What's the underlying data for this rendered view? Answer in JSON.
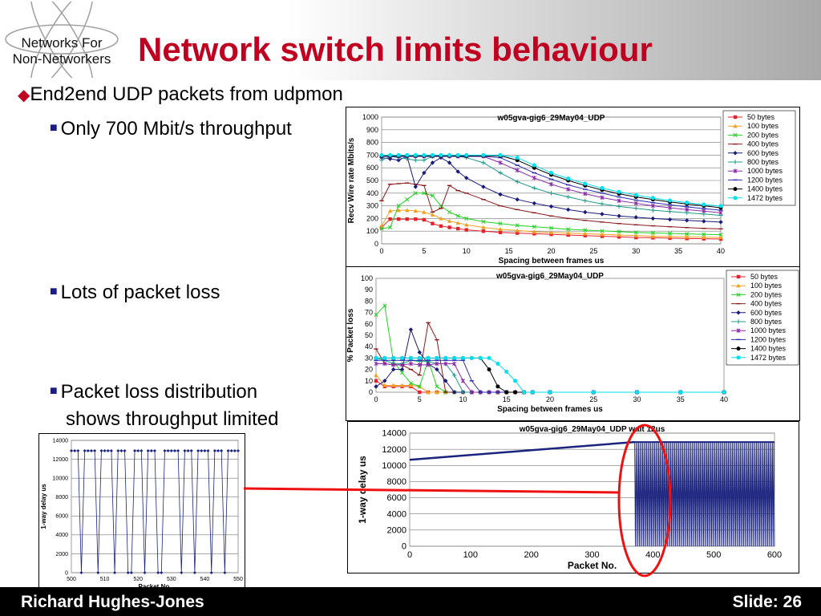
{
  "slide": {
    "logo_lines": [
      "Networks For",
      "Non-Networkers"
    ],
    "title": "Network switch limits behaviour",
    "bullet1": "End2end UDP packets from udpmon",
    "sub1": "Only 700 Mbit/s throughput",
    "sub2": "Lots of packet loss",
    "sub3_line1": "Packet loss distribution",
    "sub3_line2": "shows throughput limited",
    "footer_author": "Richard Hughes-Jones",
    "footer_slide": "Slide: 26"
  },
  "colors": {
    "title": "#c00020",
    "highlight": "#ee1111",
    "bullet_sub": "#1b1b8a"
  },
  "chart_data": [
    {
      "type": "line",
      "title": "w05gva-gig6_29May04_UDP",
      "xlabel": "Spacing between frames us",
      "ylabel": "Recv Wire rate Mbits/s",
      "xlim": [
        0,
        40
      ],
      "ylim": [
        0,
        1000
      ],
      "xticks": [
        0,
        5,
        10,
        15,
        20,
        25,
        30,
        35,
        40
      ],
      "yticks": [
        0,
        100,
        200,
        300,
        400,
        500,
        600,
        700,
        800,
        900,
        1000
      ],
      "grid": true,
      "legend": "right",
      "x": [
        0,
        1,
        2,
        3,
        4,
        5,
        6,
        7,
        8,
        9,
        10,
        12,
        14,
        16,
        18,
        20,
        22,
        24,
        26,
        28,
        30,
        32,
        34,
        36,
        38,
        40
      ],
      "series": [
        {
          "name": "50 bytes",
          "color": "#e8202a",
          "values": [
            130,
            195,
            195,
            195,
            195,
            190,
            160,
            140,
            130,
            120,
            110,
            100,
            90,
            85,
            80,
            75,
            70,
            65,
            60,
            55,
            50,
            48,
            45,
            42,
            40,
            38
          ]
        },
        {
          "name": "100 bytes",
          "color": "#f0a020",
          "values": [
            140,
            260,
            265,
            265,
            260,
            250,
            230,
            200,
            180,
            165,
            150,
            130,
            115,
            105,
            95,
            90,
            85,
            80,
            75,
            70,
            65,
            60,
            58,
            55,
            52,
            50
          ]
        },
        {
          "name": "200 bytes",
          "color": "#20d020",
          "values": [
            120,
            130,
            300,
            350,
            400,
            400,
            380,
            300,
            250,
            220,
            200,
            175,
            160,
            145,
            135,
            125,
            115,
            108,
            102,
            96,
            90,
            86,
            82,
            78,
            75,
            72
          ]
        },
        {
          "name": "400 bytes",
          "color": "#8b1a1a",
          "values": [
            340,
            470,
            475,
            480,
            470,
            460,
            250,
            280,
            460,
            420,
            400,
            350,
            300,
            270,
            245,
            220,
            200,
            185,
            172,
            160,
            150,
            142,
            135,
            128,
            122,
            118
          ]
        },
        {
          "name": "600 bytes",
          "color": "#1a1a7a",
          "values": [
            680,
            670,
            660,
            690,
            450,
            560,
            640,
            680,
            640,
            570,
            520,
            450,
            390,
            350,
            320,
            295,
            270,
            250,
            235,
            220,
            210,
            200,
            192,
            185,
            178,
            172
          ]
        },
        {
          "name": "800 bytes",
          "color": "#1e9a8a",
          "values": [
            660,
            690,
            680,
            670,
            660,
            660,
            690,
            690,
            690,
            690,
            680,
            640,
            560,
            490,
            440,
            400,
            370,
            340,
            315,
            295,
            280,
            265,
            255,
            245,
            235,
            225
          ]
        },
        {
          "name": "1000 bytes",
          "color": "#8a2aa8",
          "values": [
            690,
            690,
            690,
            690,
            690,
            690,
            690,
            690,
            690,
            690,
            690,
            690,
            640,
            580,
            520,
            470,
            430,
            395,
            365,
            340,
            320,
            300,
            285,
            270,
            258,
            245
          ]
        },
        {
          "name": "1200 bytes",
          "color": "#2a2ab0",
          "values": [
            690,
            690,
            690,
            690,
            690,
            690,
            690,
            690,
            690,
            690,
            690,
            690,
            680,
            620,
            560,
            510,
            465,
            430,
            400,
            370,
            345,
            325,
            308,
            292,
            278,
            265
          ]
        },
        {
          "name": "1400 bytes",
          "color": "#000000",
          "values": [
            695,
            695,
            695,
            695,
            695,
            695,
            695,
            695,
            695,
            695,
            695,
            695,
            695,
            660,
            600,
            545,
            500,
            460,
            425,
            395,
            370,
            350,
            330,
            315,
            300,
            285
          ]
        },
        {
          "name": "1472 bytes",
          "color": "#00e0f0",
          "values": [
            700,
            700,
            700,
            700,
            700,
            700,
            700,
            700,
            700,
            700,
            700,
            700,
            700,
            680,
            620,
            560,
            515,
            475,
            440,
            410,
            385,
            362,
            342,
            325,
            310,
            298
          ]
        }
      ]
    },
    {
      "type": "line",
      "title": "w05gva-gig6_29May04_UDP",
      "xlabel": "Spacing between frames us",
      "ylabel": "% Packet loss",
      "xlim": [
        0,
        40
      ],
      "ylim": [
        0,
        100
      ],
      "xticks": [
        0,
        5,
        10,
        15,
        20,
        25,
        30,
        35,
        40
      ],
      "yticks": [
        0,
        10,
        20,
        30,
        40,
        50,
        60,
        70,
        80,
        90,
        100
      ],
      "grid": false,
      "legend": "right",
      "x": [
        0,
        1,
        2,
        3,
        4,
        5,
        6,
        7,
        8,
        9,
        10,
        11,
        12,
        13,
        14,
        15,
        16,
        17,
        18,
        20,
        25,
        30,
        35,
        40
      ],
      "series": [
        {
          "name": "50 bytes",
          "color": "#e8202a",
          "values": [
            10,
            5,
            5,
            5,
            5,
            0,
            0,
            0,
            0,
            0,
            0,
            0,
            0,
            0,
            0,
            0,
            0,
            0,
            0,
            0,
            0,
            0,
            0,
            0
          ]
        },
        {
          "name": "100 bytes",
          "color": "#f0a020",
          "values": [
            15,
            6,
            6,
            6,
            6,
            5,
            0,
            0,
            0,
            0,
            0,
            0,
            0,
            0,
            0,
            0,
            0,
            0,
            0,
            0,
            0,
            0,
            0,
            0
          ]
        },
        {
          "name": "200 bytes",
          "color": "#20d020",
          "values": [
            68,
            76,
            27,
            17,
            8,
            5,
            28,
            5,
            0,
            0,
            0,
            0,
            0,
            0,
            0,
            0,
            0,
            0,
            0,
            0,
            0,
            0,
            0,
            0
          ]
        },
        {
          "name": "400 bytes",
          "color": "#8b1a1a",
          "values": [
            38,
            25,
            24,
            24,
            20,
            15,
            61,
            46,
            0,
            0,
            0,
            0,
            0,
            0,
            0,
            0,
            0,
            0,
            0,
            0,
            0,
            0,
            0,
            0
          ]
        },
        {
          "name": "600 bytes",
          "color": "#1a1a7a",
          "values": [
            5,
            10,
            20,
            20,
            55,
            35,
            25,
            20,
            10,
            0,
            0,
            0,
            0,
            0,
            0,
            0,
            0,
            0,
            0,
            0,
            0,
            0,
            0,
            0
          ]
        },
        {
          "name": "800 bytes",
          "color": "#1e9a8a",
          "values": [
            30,
            28,
            25,
            25,
            28,
            27,
            27,
            25,
            25,
            15,
            0,
            0,
            0,
            0,
            0,
            0,
            0,
            0,
            0,
            0,
            0,
            0,
            0,
            0
          ]
        },
        {
          "name": "1000 bytes",
          "color": "#8a2aa8",
          "values": [
            25,
            25,
            24,
            24,
            25,
            24,
            24,
            25,
            25,
            25,
            10,
            0,
            0,
            0,
            0,
            0,
            0,
            0,
            0,
            0,
            0,
            0,
            0,
            0
          ]
        },
        {
          "name": "1200 bytes",
          "color": "#2a2ab0",
          "values": [
            28,
            28,
            28,
            28,
            28,
            28,
            28,
            28,
            28,
            28,
            28,
            10,
            0,
            0,
            0,
            0,
            0,
            0,
            0,
            0,
            0,
            0,
            0,
            0
          ]
        },
        {
          "name": "1400 bytes",
          "color": "#000000",
          "values": [
            30,
            30,
            30,
            30,
            30,
            30,
            30,
            30,
            30,
            30,
            30,
            30,
            30,
            20,
            5,
            0,
            0,
            0,
            0,
            0,
            0,
            0,
            0,
            0
          ]
        },
        {
          "name": "1472 bytes",
          "color": "#00e0f0",
          "values": [
            30,
            30,
            30,
            30,
            30,
            30,
            30,
            30,
            30,
            30,
            30,
            30,
            30,
            30,
            25,
            18,
            10,
            0,
            0,
            0,
            0,
            0,
            0,
            0
          ]
        }
      ]
    },
    {
      "type": "line",
      "title": "w05gva-gig6_29May04_UDP wait 12us",
      "xlabel": "Packet No.",
      "ylabel": "1-way delay us",
      "xlim": [
        0,
        600
      ],
      "ylim": [
        0,
        14000
      ],
      "xticks": [
        0,
        100,
        200,
        300,
        400,
        500,
        600
      ],
      "yticks": [
        0,
        2000,
        4000,
        6000,
        8000,
        10000,
        12000,
        14000
      ],
      "grid": true,
      "ramp": [
        [
          0,
          10700
        ],
        [
          370,
          12900
        ]
      ],
      "oscillation": {
        "x_start": 370,
        "x_end": 600,
        "high": 12900,
        "low": 0
      }
    },
    {
      "type": "line",
      "title": "",
      "xlabel": "Packet No.",
      "ylabel": "1-way delay us",
      "xlim": [
        500,
        550
      ],
      "ylim": [
        0,
        14000
      ],
      "xticks": [
        500,
        510,
        520,
        530,
        540,
        550
      ],
      "yticks": [
        0,
        2000,
        4000,
        6000,
        8000,
        10000,
        12000,
        14000
      ],
      "grid": true,
      "x": [
        500,
        501,
        502,
        503,
        504,
        505,
        506,
        507,
        508,
        509,
        510,
        511,
        512,
        513,
        514,
        515,
        516,
        517,
        518,
        519,
        520,
        521,
        522,
        523,
        524,
        525,
        526,
        527,
        528,
        529,
        530,
        531,
        532,
        533,
        534,
        535,
        536,
        537,
        538,
        539,
        540,
        541,
        542,
        543,
        544,
        545,
        546,
        547,
        548,
        549,
        550
      ],
      "values": [
        12900,
        12900,
        12900,
        0,
        12900,
        12900,
        12900,
        12900,
        0,
        12900,
        12900,
        12900,
        12900,
        0,
        12900,
        12900,
        12900,
        0,
        0,
        12900,
        12900,
        12900,
        0,
        12900,
        12900,
        12900,
        0,
        0,
        12900,
        12900,
        12900,
        12900,
        12900,
        0,
        12900,
        12900,
        12900,
        0,
        12900,
        12900,
        12900,
        12900,
        0,
        12900,
        12900,
        12900,
        0,
        12900,
        12900,
        12900,
        12900
      ]
    }
  ]
}
